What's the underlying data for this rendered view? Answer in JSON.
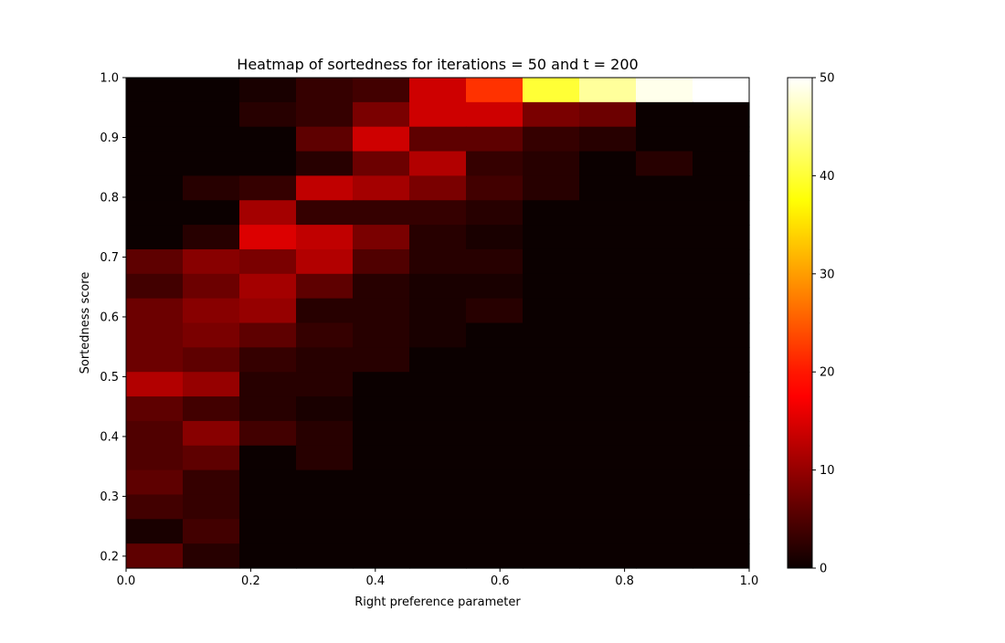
{
  "chart_data": {
    "type": "heatmap",
    "title": "Heatmap of sortedness for iterations = 50 and t = 200",
    "xlabel": "Right preference parameter",
    "ylabel": "Sortedness score",
    "xlim": [
      0,
      1
    ],
    "ylim": [
      0.18,
      1.0
    ],
    "x_bins": 11,
    "y_bins": 20,
    "x_ticks": [
      0,
      0.2,
      0.4,
      0.6,
      0.8,
      1.0
    ],
    "x_tick_labels": [
      "0.0",
      "0.2",
      "0.4",
      "0.6",
      "0.8",
      "1.0"
    ],
    "y_ticks": [
      0.2,
      0.3,
      0.4,
      0.5,
      0.6,
      0.7,
      0.8,
      0.9,
      1.0
    ],
    "y_tick_labels": [
      "0.2",
      "0.3",
      "0.4",
      "0.5",
      "0.6",
      "0.7",
      "0.8",
      "0.9",
      "1.0"
    ],
    "colormap": "hot",
    "vmin": 0,
    "vmax": 50,
    "colorbar_ticks": [
      0,
      10,
      20,
      30,
      40,
      50
    ],
    "colorbar_tick_labels": [
      "0",
      "10",
      "20",
      "30",
      "40",
      "50"
    ],
    "grid": false,
    "values_rows_top_to_bottom": [
      [
        0,
        0,
        1,
        3,
        4,
        14,
        22,
        40,
        45,
        49,
        50
      ],
      [
        0,
        0,
        2,
        3,
        8,
        14,
        14,
        8,
        7,
        0,
        0
      ],
      [
        0,
        0,
        0,
        6,
        14,
        6,
        6,
        3,
        2,
        0,
        0
      ],
      [
        0,
        0,
        0,
        2,
        7,
        12,
        3,
        2,
        0,
        2,
        0
      ],
      [
        0,
        2,
        3,
        13,
        11,
        8,
        4,
        2,
        0,
        0,
        0
      ],
      [
        0,
        0,
        11,
        3,
        3,
        3,
        2,
        0,
        0,
        0,
        0
      ],
      [
        0,
        2,
        15,
        13,
        8,
        2,
        1,
        0,
        0,
        0,
        0
      ],
      [
        6,
        9,
        8,
        12,
        5,
        2,
        2,
        0,
        0,
        0,
        0
      ],
      [
        4,
        7,
        11,
        6,
        2,
        1,
        1,
        0,
        0,
        0,
        0
      ],
      [
        7,
        9,
        10,
        2,
        2,
        1,
        2,
        0,
        0,
        0,
        0
      ],
      [
        7,
        8,
        6,
        3,
        2,
        1,
        0,
        0,
        0,
        0,
        0
      ],
      [
        7,
        6,
        3,
        2,
        2,
        0,
        0,
        0,
        0,
        0,
        0
      ],
      [
        12,
        10,
        2,
        2,
        0,
        0,
        0,
        0,
        0,
        0,
        0
      ],
      [
        6,
        4,
        2,
        1,
        0,
        0,
        0,
        0,
        0,
        0,
        0
      ],
      [
        5,
        9,
        4,
        2,
        0,
        0,
        0,
        0,
        0,
        0,
        0
      ],
      [
        5,
        6,
        0,
        2,
        0,
        0,
        0,
        0,
        0,
        0,
        0
      ],
      [
        6,
        3,
        0,
        0,
        0,
        0,
        0,
        0,
        0,
        0,
        0
      ],
      [
        4,
        3,
        0,
        0,
        0,
        0,
        0,
        0,
        0,
        0,
        0
      ],
      [
        1,
        4,
        0,
        0,
        0,
        0,
        0,
        0,
        0,
        0,
        0
      ],
      [
        6,
        2,
        0,
        0,
        0,
        0,
        0,
        0,
        0,
        0,
        0
      ]
    ]
  }
}
